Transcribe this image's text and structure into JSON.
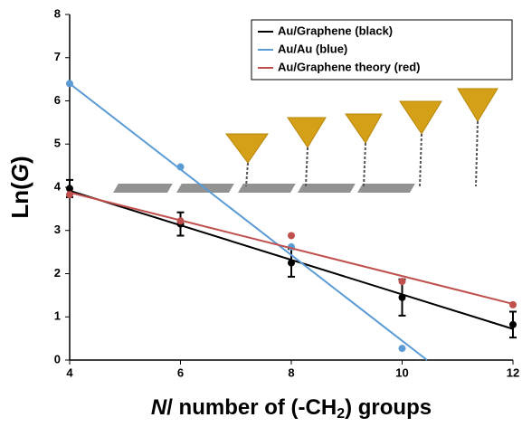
{
  "chart_data": {
    "type": "scatter",
    "x_label": [
      "N",
      "/ number of (-CH",
      "2",
      ") groups"
    ],
    "y_label": [
      "Ln(",
      "G",
      ")"
    ],
    "xlim": [
      4,
      12
    ],
    "xticks": [
      4,
      6,
      8,
      10,
      12
    ],
    "ylim": [
      0,
      8
    ],
    "yticks": [
      0,
      1,
      2,
      3,
      4,
      5,
      6,
      7,
      8
    ],
    "legend": "top-right",
    "series": [
      {
        "name": "Au/Graphene (black)",
        "color": "#000000",
        "x": [
          4,
          6,
          8,
          10,
          12
        ],
        "values": [
          3.97,
          3.15,
          2.25,
          1.45,
          0.82
        ],
        "errors": [
          0.2,
          0.27,
          0.32,
          0.42,
          0.3
        ],
        "fit_x": [
          4,
          12
        ],
        "fit_values": [
          3.92,
          0.72
        ]
      },
      {
        "name": "Au/Au (blue)",
        "color": "#5b9bd5",
        "x": [
          4,
          6,
          8,
          10
        ],
        "values": [
          6.4,
          4.47,
          2.62,
          0.27
        ],
        "fit_x": [
          4,
          10.45
        ],
        "fit_values": [
          6.4,
          0
        ]
      },
      {
        "name": "Au/Graphene theory (red)",
        "color": "#c0504d",
        "x": [
          4,
          6,
          8,
          10,
          12
        ],
        "values": [
          3.83,
          3.22,
          2.88,
          1.82,
          1.28
        ],
        "fit_x": [
          4,
          12
        ],
        "fit_values": [
          3.88,
          1.3
        ]
      }
    ]
  }
}
